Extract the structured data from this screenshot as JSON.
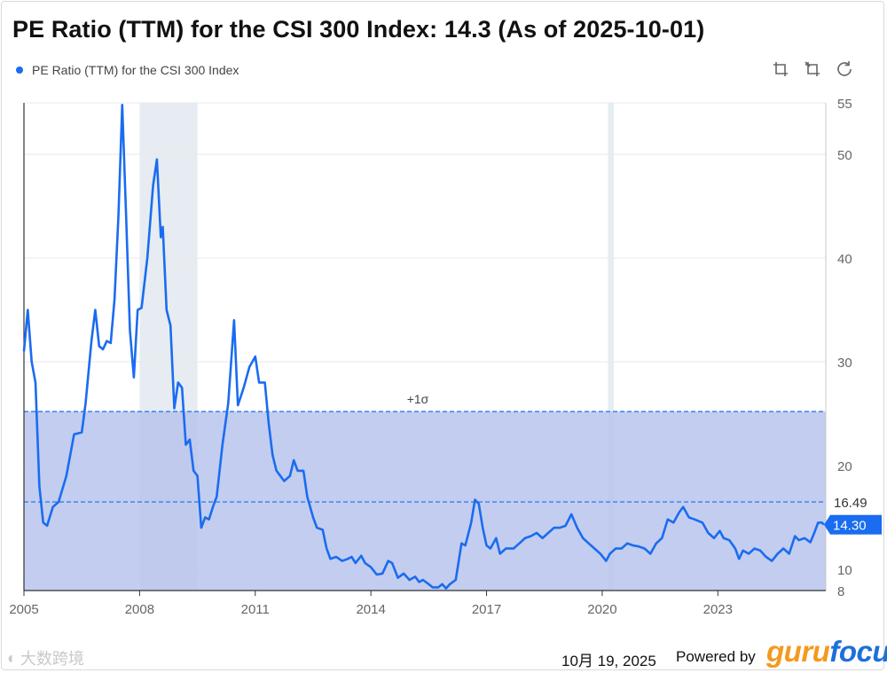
{
  "title": "PE Ratio (TTM) for the CSI 300 Index: 14.3 (As of 2025-10-01)",
  "legend": {
    "label": "PE Ratio (TTM) for the CSI 300 Index",
    "color": "#1a6cf0"
  },
  "toolbar": {
    "icons": [
      "zoom-in-icon",
      "zoom-reset-icon",
      "refresh-icon"
    ]
  },
  "footer": {
    "date": "10月 19, 2025",
    "powered_by": "Powered by",
    "brand_part1": "guru",
    "brand_part2": "focus"
  },
  "watermark": "大数跨境",
  "colors": {
    "line": "#1a6cf0",
    "band": "#b8c4ec",
    "recession": "#e6ecf2",
    "grid": "#e9e9e9",
    "label_bg": "#1a6cf0"
  },
  "chart_data": {
    "type": "line",
    "title": "PE Ratio (TTM) for the CSI 300 Index",
    "xlabel": "",
    "ylabel": "",
    "x_ticks": [
      "2005",
      "2008",
      "2011",
      "2014",
      "2017",
      "2020",
      "2023"
    ],
    "y_ticks": [
      8,
      10,
      20,
      30,
      40,
      50,
      55
    ],
    "ylim": [
      8,
      55
    ],
    "xlim": [
      2005.0,
      2025.8
    ],
    "recession_periods": [
      [
        2008.0,
        2009.5
      ],
      [
        2020.15,
        2020.3
      ]
    ],
    "band_upper": {
      "label": "+1σ",
      "value": 25.2
    },
    "mean_line": {
      "label": "16.49",
      "value": 16.49
    },
    "current": {
      "label": "14.30",
      "value": 14.3
    },
    "series": [
      {
        "name": "PE Ratio (TTM) for the CSI 300 Index",
        "points": [
          [
            2005.0,
            31.0
          ],
          [
            2005.1,
            35.0
          ],
          [
            2005.2,
            30.0
          ],
          [
            2005.3,
            28.0
          ],
          [
            2005.4,
            18.0
          ],
          [
            2005.5,
            14.5
          ],
          [
            2005.6,
            14.2
          ],
          [
            2005.75,
            16.0
          ],
          [
            2005.9,
            16.5
          ],
          [
            2006.1,
            19.0
          ],
          [
            2006.3,
            23.0
          ],
          [
            2006.5,
            23.2
          ],
          [
            2006.6,
            26.0
          ],
          [
            2006.75,
            32.0
          ],
          [
            2006.85,
            35.0
          ],
          [
            2006.95,
            31.5
          ],
          [
            2007.05,
            31.2
          ],
          [
            2007.15,
            32.0
          ],
          [
            2007.25,
            31.8
          ],
          [
            2007.35,
            36.0
          ],
          [
            2007.45,
            44.0
          ],
          [
            2007.55,
            54.8
          ],
          [
            2007.65,
            44.0
          ],
          [
            2007.75,
            33.0
          ],
          [
            2007.85,
            28.5
          ],
          [
            2007.95,
            35.0
          ],
          [
            2008.05,
            35.2
          ],
          [
            2008.2,
            40.0
          ],
          [
            2008.35,
            47.0
          ],
          [
            2008.45,
            49.5
          ],
          [
            2008.55,
            42.0
          ],
          [
            2008.6,
            43.0
          ],
          [
            2008.7,
            35.0
          ],
          [
            2008.8,
            33.5
          ],
          [
            2008.9,
            25.5
          ],
          [
            2009.0,
            28.0
          ],
          [
            2009.1,
            27.5
          ],
          [
            2009.2,
            22.0
          ],
          [
            2009.3,
            22.5
          ],
          [
            2009.4,
            19.5
          ],
          [
            2009.5,
            19.0
          ],
          [
            2009.6,
            14.0
          ],
          [
            2009.7,
            15.0
          ],
          [
            2009.8,
            14.8
          ],
          [
            2009.9,
            16.0
          ],
          [
            2010.0,
            17.0
          ],
          [
            2010.15,
            22.0
          ],
          [
            2010.3,
            26.0
          ],
          [
            2010.45,
            34.0
          ],
          [
            2010.55,
            25.8
          ],
          [
            2010.7,
            27.5
          ],
          [
            2010.85,
            29.5
          ],
          [
            2011.0,
            30.5
          ],
          [
            2011.1,
            28.0
          ],
          [
            2011.25,
            28.0
          ],
          [
            2011.35,
            24.0
          ],
          [
            2011.45,
            21.0
          ],
          [
            2011.55,
            19.5
          ],
          [
            2011.65,
            19.0
          ],
          [
            2011.75,
            18.5
          ],
          [
            2011.9,
            19.0
          ],
          [
            2012.0,
            20.5
          ],
          [
            2012.1,
            19.5
          ],
          [
            2012.25,
            19.5
          ],
          [
            2012.35,
            17.0
          ],
          [
            2012.5,
            15.0
          ],
          [
            2012.6,
            14.0
          ],
          [
            2012.75,
            13.8
          ],
          [
            2012.85,
            12.0
          ],
          [
            2012.95,
            11.0
          ],
          [
            2013.1,
            11.2
          ],
          [
            2013.25,
            10.8
          ],
          [
            2013.4,
            11.0
          ],
          [
            2013.5,
            11.2
          ],
          [
            2013.6,
            10.6
          ],
          [
            2013.75,
            11.3
          ],
          [
            2013.85,
            10.6
          ],
          [
            2014.0,
            10.2
          ],
          [
            2014.15,
            9.5
          ],
          [
            2014.3,
            9.6
          ],
          [
            2014.45,
            10.8
          ],
          [
            2014.55,
            10.6
          ],
          [
            2014.7,
            9.2
          ],
          [
            2014.85,
            9.6
          ],
          [
            2015.0,
            9.0
          ],
          [
            2015.15,
            9.3
          ],
          [
            2015.25,
            8.8
          ],
          [
            2015.35,
            9.0
          ],
          [
            2015.5,
            8.6
          ],
          [
            2015.6,
            8.3
          ],
          [
            2015.75,
            8.3
          ],
          [
            2015.85,
            8.6
          ],
          [
            2015.95,
            8.2
          ],
          [
            2016.05,
            8.6
          ],
          [
            2016.2,
            9.0
          ],
          [
            2016.35,
            12.5
          ],
          [
            2016.45,
            12.3
          ],
          [
            2016.6,
            14.5
          ],
          [
            2016.7,
            16.7
          ],
          [
            2016.8,
            16.3
          ],
          [
            2016.9,
            14.0
          ],
          [
            2017.0,
            12.3
          ],
          [
            2017.1,
            12.0
          ],
          [
            2017.25,
            13.0
          ],
          [
            2017.35,
            11.5
          ],
          [
            2017.5,
            12.0
          ],
          [
            2017.7,
            12.0
          ],
          [
            2017.85,
            12.5
          ],
          [
            2018.0,
            13.0
          ],
          [
            2018.15,
            13.2
          ],
          [
            2018.3,
            13.5
          ],
          [
            2018.45,
            13.0
          ],
          [
            2018.6,
            13.5
          ],
          [
            2018.75,
            14.0
          ],
          [
            2018.9,
            14.0
          ],
          [
            2019.05,
            14.2
          ],
          [
            2019.2,
            15.3
          ],
          [
            2019.35,
            14.0
          ],
          [
            2019.5,
            13.0
          ],
          [
            2019.65,
            12.5
          ],
          [
            2019.8,
            12.0
          ],
          [
            2019.95,
            11.5
          ],
          [
            2020.1,
            10.8
          ],
          [
            2020.2,
            11.5
          ],
          [
            2020.35,
            12.0
          ],
          [
            2020.5,
            12.0
          ],
          [
            2020.65,
            12.5
          ],
          [
            2020.8,
            12.3
          ],
          [
            2020.95,
            12.2
          ],
          [
            2021.1,
            12.0
          ],
          [
            2021.25,
            11.5
          ],
          [
            2021.4,
            12.5
          ],
          [
            2021.55,
            13.0
          ],
          [
            2021.7,
            14.8
          ],
          [
            2021.85,
            14.5
          ],
          [
            2022.0,
            15.5
          ],
          [
            2022.1,
            16.0
          ],
          [
            2022.25,
            15.0
          ],
          [
            2022.4,
            14.8
          ],
          [
            2022.6,
            14.5
          ],
          [
            2022.75,
            13.5
          ],
          [
            2022.9,
            13.0
          ],
          [
            2023.05,
            13.7
          ],
          [
            2023.15,
            13.0
          ],
          [
            2023.3,
            12.8
          ],
          [
            2023.45,
            12.0
          ],
          [
            2023.55,
            11.0
          ],
          [
            2023.65,
            11.8
          ],
          [
            2023.8,
            11.5
          ],
          [
            2023.95,
            12.0
          ],
          [
            2024.1,
            11.8
          ],
          [
            2024.25,
            11.2
          ],
          [
            2024.4,
            10.8
          ],
          [
            2024.55,
            11.5
          ],
          [
            2024.7,
            12.0
          ],
          [
            2024.85,
            11.5
          ],
          [
            2025.0,
            13.2
          ],
          [
            2025.1,
            12.8
          ],
          [
            2025.25,
            13.0
          ],
          [
            2025.4,
            12.6
          ],
          [
            2025.5,
            13.5
          ],
          [
            2025.6,
            14.5
          ],
          [
            2025.7,
            14.5
          ],
          [
            2025.75,
            14.3
          ]
        ]
      }
    ]
  }
}
